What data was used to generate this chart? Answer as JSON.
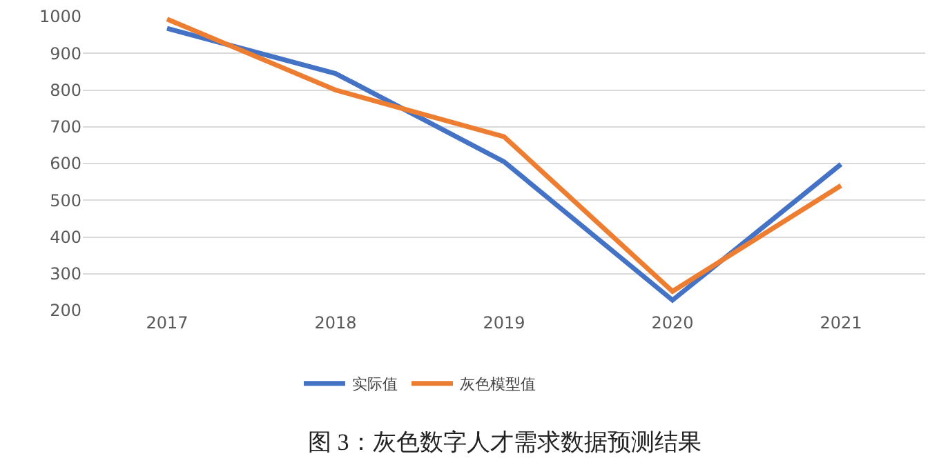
{
  "chart_data": {
    "type": "line",
    "categories": [
      "2017",
      "2018",
      "2019",
      "2020",
      "2021"
    ],
    "series": [
      {
        "name": "实际值",
        "color": "#4472c4",
        "values": [
          968,
          845,
          605,
          228,
          598
        ]
      },
      {
        "name": "灰色模型值",
        "color": "#ed7d31",
        "values": [
          993,
          800,
          673,
          252,
          540
        ]
      }
    ],
    "ylim": [
      200,
      1000
    ],
    "yticks": [
      200,
      300,
      400,
      500,
      600,
      700,
      800,
      900,
      1000
    ],
    "grid": "y",
    "legend": "bottom",
    "marker": "none",
    "line_style": "solid",
    "annotations": [
      "图 3：灰色数字人才需求数据预测结果"
    ]
  }
}
